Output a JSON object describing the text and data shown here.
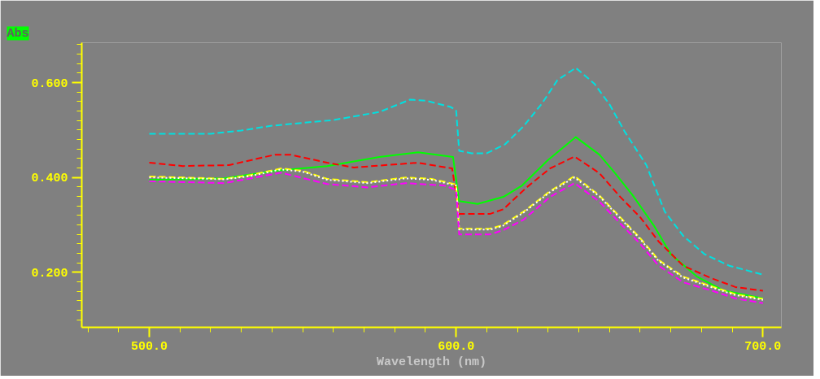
{
  "chart_data": {
    "type": "line",
    "xlabel": "Wavelength (nm)",
    "ylabel": "Abs",
    "xlim": [
      478,
      706
    ],
    "ylim": [
      0.084,
      0.684
    ],
    "xticks": [
      {
        "value": 480,
        "label": null
      },
      {
        "value": 490,
        "label": null
      },
      {
        "value": 500,
        "label": "500.0"
      },
      {
        "value": 510,
        "label": null
      },
      {
        "value": 520,
        "label": null
      },
      {
        "value": 530,
        "label": null
      },
      {
        "value": 540,
        "label": null
      },
      {
        "value": 550,
        "label": null
      },
      {
        "value": 560,
        "label": null
      },
      {
        "value": 570,
        "label": null
      },
      {
        "value": 580,
        "label": null
      },
      {
        "value": 590,
        "label": null
      },
      {
        "value": 600,
        "label": "600.0"
      },
      {
        "value": 610,
        "label": null
      },
      {
        "value": 620,
        "label": null
      },
      {
        "value": 630,
        "label": null
      },
      {
        "value": 640,
        "label": null
      },
      {
        "value": 650,
        "label": null
      },
      {
        "value": 660,
        "label": null
      },
      {
        "value": 670,
        "label": null
      },
      {
        "value": 680,
        "label": null
      },
      {
        "value": 690,
        "label": null
      },
      {
        "value": 700,
        "label": "700.0"
      }
    ],
    "yticks": [
      {
        "value": 0.1,
        "label": null
      },
      {
        "value": 0.12,
        "label": null
      },
      {
        "value": 0.14,
        "label": null
      },
      {
        "value": 0.16,
        "label": null
      },
      {
        "value": 0.18,
        "label": null
      },
      {
        "value": 0.2,
        "label": "0.200"
      },
      {
        "value": 0.22,
        "label": null
      },
      {
        "value": 0.24,
        "label": null
      },
      {
        "value": 0.26,
        "label": null
      },
      {
        "value": 0.28,
        "label": null
      },
      {
        "value": 0.3,
        "label": null
      },
      {
        "value": 0.32,
        "label": null
      },
      {
        "value": 0.34,
        "label": null
      },
      {
        "value": 0.36,
        "label": null
      },
      {
        "value": 0.38,
        "label": null
      },
      {
        "value": 0.4,
        "label": "0.400"
      },
      {
        "value": 0.42,
        "label": null
      },
      {
        "value": 0.44,
        "label": null
      },
      {
        "value": 0.46,
        "label": null
      },
      {
        "value": 0.48,
        "label": null
      },
      {
        "value": 0.5,
        "label": null
      },
      {
        "value": 0.52,
        "label": null
      },
      {
        "value": 0.54,
        "label": null
      },
      {
        "value": 0.56,
        "label": null
      },
      {
        "value": 0.58,
        "label": null
      },
      {
        "value": 0.6,
        "label": "0.600"
      },
      {
        "value": 0.62,
        "label": null
      },
      {
        "value": 0.64,
        "label": null
      },
      {
        "value": 0.66,
        "label": null
      },
      {
        "value": 0.68,
        "label": null
      }
    ],
    "grid": false,
    "marker": "none",
    "series": [
      {
        "color": "#00e0e0",
        "line_style": "dashed",
        "x": [
          500,
          520,
          530,
          540,
          560,
          575,
          585,
          590,
          598,
          600,
          601,
          605,
          610,
          616,
          622,
          628,
          633,
          639,
          645,
          650,
          655,
          662,
          668,
          674,
          681,
          689,
          700
        ],
        "values": [
          0.492,
          0.492,
          0.499,
          0.509,
          0.521,
          0.538,
          0.564,
          0.562,
          0.549,
          0.542,
          0.456,
          0.451,
          0.451,
          0.47,
          0.508,
          0.556,
          0.605,
          0.631,
          0.598,
          0.554,
          0.496,
          0.426,
          0.328,
          0.277,
          0.238,
          0.214,
          0.195
        ]
      },
      {
        "color": "#00ff00",
        "line_style": "solid",
        "x": [
          500,
          524.5,
          541,
          558,
          575,
          587.6,
          599,
          601,
          607,
          615.4,
          621.5,
          629.8,
          639,
          646.7,
          651.8,
          657.6,
          664.4,
          670,
          678.5,
          687,
          700
        ],
        "values": [
          0.395,
          0.398,
          0.414,
          0.424,
          0.443,
          0.453,
          0.443,
          0.35,
          0.344,
          0.359,
          0.383,
          0.436,
          0.485,
          0.448,
          0.409,
          0.362,
          0.299,
          0.238,
          0.191,
          0.162,
          0.145
        ]
      },
      {
        "color": "#ff0000",
        "line_style": "dashed",
        "x": [
          500,
          511,
          526,
          541,
          546,
          558,
          566.7,
          575,
          587.6,
          598.7,
          601,
          611,
          615.4,
          623,
          630.6,
          638.6,
          646.7,
          653.5,
          660,
          666,
          674,
          683,
          691,
          700
        ],
        "values": [
          0.431,
          0.424,
          0.426,
          0.448,
          0.448,
          0.431,
          0.421,
          0.425,
          0.431,
          0.419,
          0.323,
          0.323,
          0.333,
          0.379,
          0.419,
          0.444,
          0.409,
          0.359,
          0.316,
          0.265,
          0.214,
          0.188,
          0.169,
          0.161
        ]
      },
      {
        "color": "#ffff00",
        "line_style": "dashed",
        "x": [
          500,
          520,
          524.5,
          533,
          543,
          550,
          558,
          571,
          583.6,
          592,
          600,
          601,
          611,
          615,
          622,
          630.6,
          638.6,
          646.7,
          653.5,
          660,
          666,
          674,
          683,
          691,
          700
        ],
        "values": [
          0.402,
          0.398,
          0.397,
          0.405,
          0.419,
          0.414,
          0.397,
          0.39,
          0.4,
          0.397,
          0.385,
          0.292,
          0.292,
          0.299,
          0.328,
          0.371,
          0.403,
          0.362,
          0.316,
          0.272,
          0.226,
          0.191,
          0.171,
          0.154,
          0.144
        ]
      },
      {
        "color": "#ffffff",
        "line_style": "dotted",
        "x": [
          500,
          520,
          524.5,
          533,
          543,
          550,
          558,
          571,
          583.6,
          592,
          600,
          601,
          611,
          615,
          622,
          630.6,
          638.6,
          646.7,
          653.5,
          660,
          666,
          674,
          683,
          691,
          700
        ],
        "values": [
          0.4,
          0.397,
          0.396,
          0.403,
          0.417,
          0.412,
          0.395,
          0.388,
          0.398,
          0.395,
          0.383,
          0.29,
          0.29,
          0.297,
          0.326,
          0.369,
          0.4,
          0.36,
          0.314,
          0.27,
          0.224,
          0.189,
          0.169,
          0.152,
          0.142
        ]
      },
      {
        "color": "#ff00ff",
        "line_style": "dashed",
        "x": [
          500,
          524.5,
          543,
          558,
          571,
          583.6,
          596,
          600,
          601,
          611,
          615.4,
          622,
          630.6,
          638.6,
          646.7,
          653.5,
          660,
          666,
          674,
          683,
          691,
          700
        ],
        "values": [
          0.392,
          0.388,
          0.41,
          0.386,
          0.379,
          0.388,
          0.383,
          0.374,
          0.28,
          0.28,
          0.289,
          0.311,
          0.359,
          0.388,
          0.349,
          0.303,
          0.26,
          0.214,
          0.179,
          0.162,
          0.145,
          0.135
        ]
      }
    ]
  }
}
